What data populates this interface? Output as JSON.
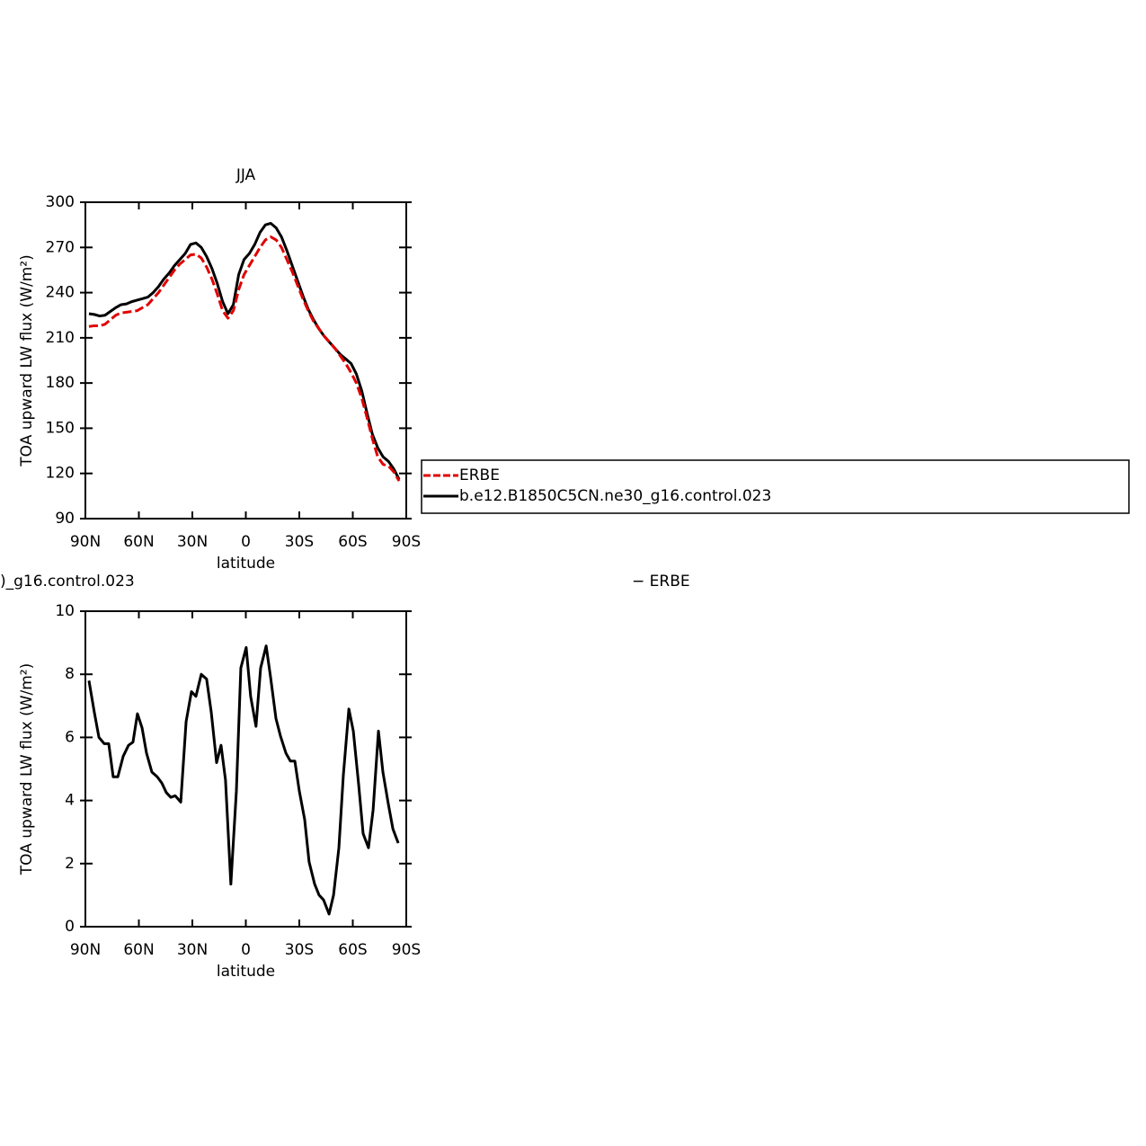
{
  "chart_data": [
    {
      "type": "line",
      "title": "JJA",
      "xlabel": "latitude",
      "ylabel": "TOA upward LW flux (W/m²)",
      "xlim": [
        90,
        -90
      ],
      "xticks": [
        {
          "value": 90,
          "label": "90N"
        },
        {
          "value": 60,
          "label": "60N"
        },
        {
          "value": 30,
          "label": "30N"
        },
        0,
        {
          "value": -30,
          "label": "30S"
        },
        {
          "value": -60,
          "label": "60S"
        },
        {
          "value": -90,
          "label": "90S"
        }
      ],
      "ylim": [
        90,
        300
      ],
      "yticks": [
        90,
        120,
        150,
        180,
        210,
        240,
        270,
        300
      ],
      "x": [
        88,
        85,
        82,
        79,
        76,
        73,
        70,
        67,
        64,
        61,
        58,
        55,
        52,
        49,
        46,
        43,
        40,
        37,
        34,
        31,
        28,
        25,
        22,
        19,
        16,
        13,
        10,
        7,
        4,
        1,
        -2,
        -5,
        -8,
        -11,
        -14,
        -17,
        -20,
        -23,
        -26,
        -29,
        -32,
        -35,
        -38,
        -41,
        -44,
        -47,
        -50,
        -53,
        -56,
        -59,
        -62,
        -65,
        -68,
        -71,
        -74,
        -77,
        -80,
        -83,
        -86
      ],
      "series": [
        {
          "name": "ERBE",
          "color": "#e00000",
          "dashed": true,
          "values": [
            217.5,
            218,
            218,
            219,
            222,
            225,
            226.5,
            227,
            227.5,
            228,
            230,
            232,
            236,
            240,
            245,
            250,
            255,
            259,
            262,
            265,
            265.5,
            263,
            257,
            249,
            239,
            228,
            223,
            228,
            242,
            252,
            258,
            264,
            270,
            275,
            277,
            275,
            270,
            262,
            254,
            245,
            236,
            228,
            221,
            216,
            211,
            207,
            203,
            198,
            193,
            187,
            180,
            170,
            157,
            143,
            131,
            126,
            125,
            121,
            115
          ]
        },
        {
          "name": "b.e12.B1850C5CN.ne30_g16.control.023",
          "color": "#000000",
          "dashed": false,
          "values": [
            226,
            225.5,
            224.5,
            225,
            227.5,
            230,
            232,
            232.5,
            234,
            235,
            236,
            237,
            240,
            244,
            249,
            253,
            258,
            262,
            266,
            272,
            273,
            270,
            264,
            256,
            246,
            234,
            226,
            232,
            252,
            262,
            266,
            272,
            280,
            285,
            286,
            283,
            277,
            268,
            258,
            248,
            238,
            229,
            222,
            216,
            211,
            207,
            203,
            199,
            196,
            193,
            186,
            175,
            160,
            146,
            137,
            131,
            128,
            123,
            116
          ]
        }
      ]
    },
    {
      "type": "line",
      "title_left": ")_g16.control.023",
      "title_right": "− ERBE",
      "xlabel": "latitude",
      "ylabel": "TOA upward LW flux (W/m²)",
      "xlim": [
        90,
        -90
      ],
      "xticks": [
        {
          "value": 90,
          "label": "90N"
        },
        {
          "value": 60,
          "label": "60N"
        },
        {
          "value": 30,
          "label": "30N"
        },
        0,
        {
          "value": -30,
          "label": "30S"
        },
        {
          "value": -60,
          "label": "60S"
        },
        {
          "value": -90,
          "label": "90S"
        }
      ],
      "ylim": [
        0,
        10
      ],
      "yticks": [
        0,
        2,
        4,
        6,
        8,
        10
      ],
      "color": "#000000",
      "x": [
        88,
        85,
        82.4,
        79.4,
        76.9,
        74.4,
        71.8,
        68.8,
        65.8,
        63.3,
        60.8,
        58.2,
        55.7,
        52.7,
        49.7,
        47.1,
        44.6,
        42.1,
        39.6,
        36.5,
        33.5,
        30.5,
        28,
        25,
        22,
        19.4,
        16.4,
        13.9,
        11.4,
        8.4,
        5.3,
        2.8,
        -0.2,
        -2.7,
        -5.7,
        -8.3,
        -11.4,
        -13.9,
        -16.9,
        -19.4,
        -22.5,
        -25,
        -27.5,
        -30,
        -33,
        -35.5,
        -38.6,
        -41.1,
        -43.6,
        -46.7,
        -49.2,
        -52.2,
        -54.7,
        -57.8,
        -60.3,
        -63.3,
        -65.8,
        -68.8,
        -71.4,
        -74.4,
        -76.9,
        -79.9,
        -82.5,
        -85.5
      ],
      "values": [
        7.8,
        6.8,
        6.0,
        5.8,
        5.8,
        4.75,
        4.75,
        5.4,
        5.75,
        5.85,
        6.75,
        6.3,
        5.5,
        4.9,
        4.75,
        4.55,
        4.25,
        4.1,
        4.15,
        3.95,
        6.5,
        7.45,
        7.3,
        8.0,
        7.85,
        6.8,
        5.2,
        5.75,
        4.65,
        1.35,
        4.3,
        8.2,
        8.85,
        7.3,
        6.35,
        8.2,
        8.9,
        7.9,
        6.6,
        6.05,
        5.5,
        5.25,
        5.25,
        4.3,
        3.4,
        2.05,
        1.35,
        1.0,
        0.85,
        0.4,
        1.0,
        2.5,
        4.8,
        6.9,
        6.2,
        4.5,
        2.95,
        2.5,
        3.7,
        6.2,
        4.9,
        3.9,
        3.1,
        2.65
      ]
    }
  ]
}
